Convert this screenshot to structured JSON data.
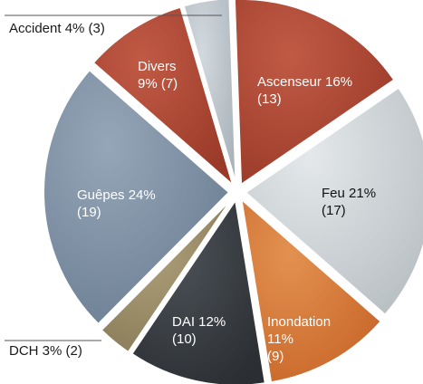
{
  "chart_data": {
    "type": "pie",
    "slices": [
      {
        "label": "Ascenseur",
        "percent": 16,
        "count": 13,
        "text_line1": "Ascenseur 16%",
        "text_line2": "(13)",
        "color": "#9a3a28",
        "color_light": "#c05a45",
        "text_color": "#ffffff"
      },
      {
        "label": "Feu",
        "percent": 21,
        "count": 17,
        "text_line1": "Feu 21%",
        "text_line2": "(17)",
        "color": "#b9c0c4",
        "color_light": "#e4e8ea",
        "text_color": "#111111"
      },
      {
        "label": "Inondation",
        "percent": 11,
        "count": 9,
        "text_line1": "Inondation",
        "text_line2": "11%",
        "text_line3": "(9)",
        "color": "#c8672a",
        "color_light": "#e39150",
        "text_color": "#ffffff"
      },
      {
        "label": "DAI",
        "percent": 12,
        "count": 10,
        "text_line1": "DAI 12%",
        "text_line2": "(10)",
        "color": "#2b2f34",
        "color_light": "#4c5157",
        "text_color": "#ffffff"
      },
      {
        "label": "DCH",
        "percent": 3,
        "count": 2,
        "outside_text": "DCH 3% (2)",
        "color": "#8a7b58",
        "color_light": "#b0a27c",
        "text_color": "#111111"
      },
      {
        "label": "Guêpes",
        "percent": 24,
        "count": 19,
        "text_line1": "Guêpes 24%",
        "text_line2": "(19)",
        "color": "#6c7e93",
        "color_light": "#95a6b8",
        "text_color": "#ffffff"
      },
      {
        "label": "Divers",
        "percent": 9,
        "count": 7,
        "text_line1": "Divers",
        "text_line2": "9% (7)",
        "color": "#9a3a28",
        "color_light": "#c05a45",
        "text_color": "#ffffff"
      },
      {
        "label": "Accident",
        "percent": 4,
        "count": 3,
        "outside_text": "Accident 4% (3)",
        "color": "#aab4bb",
        "color_light": "#d2d9de",
        "text_color": "#111111"
      }
    ]
  }
}
